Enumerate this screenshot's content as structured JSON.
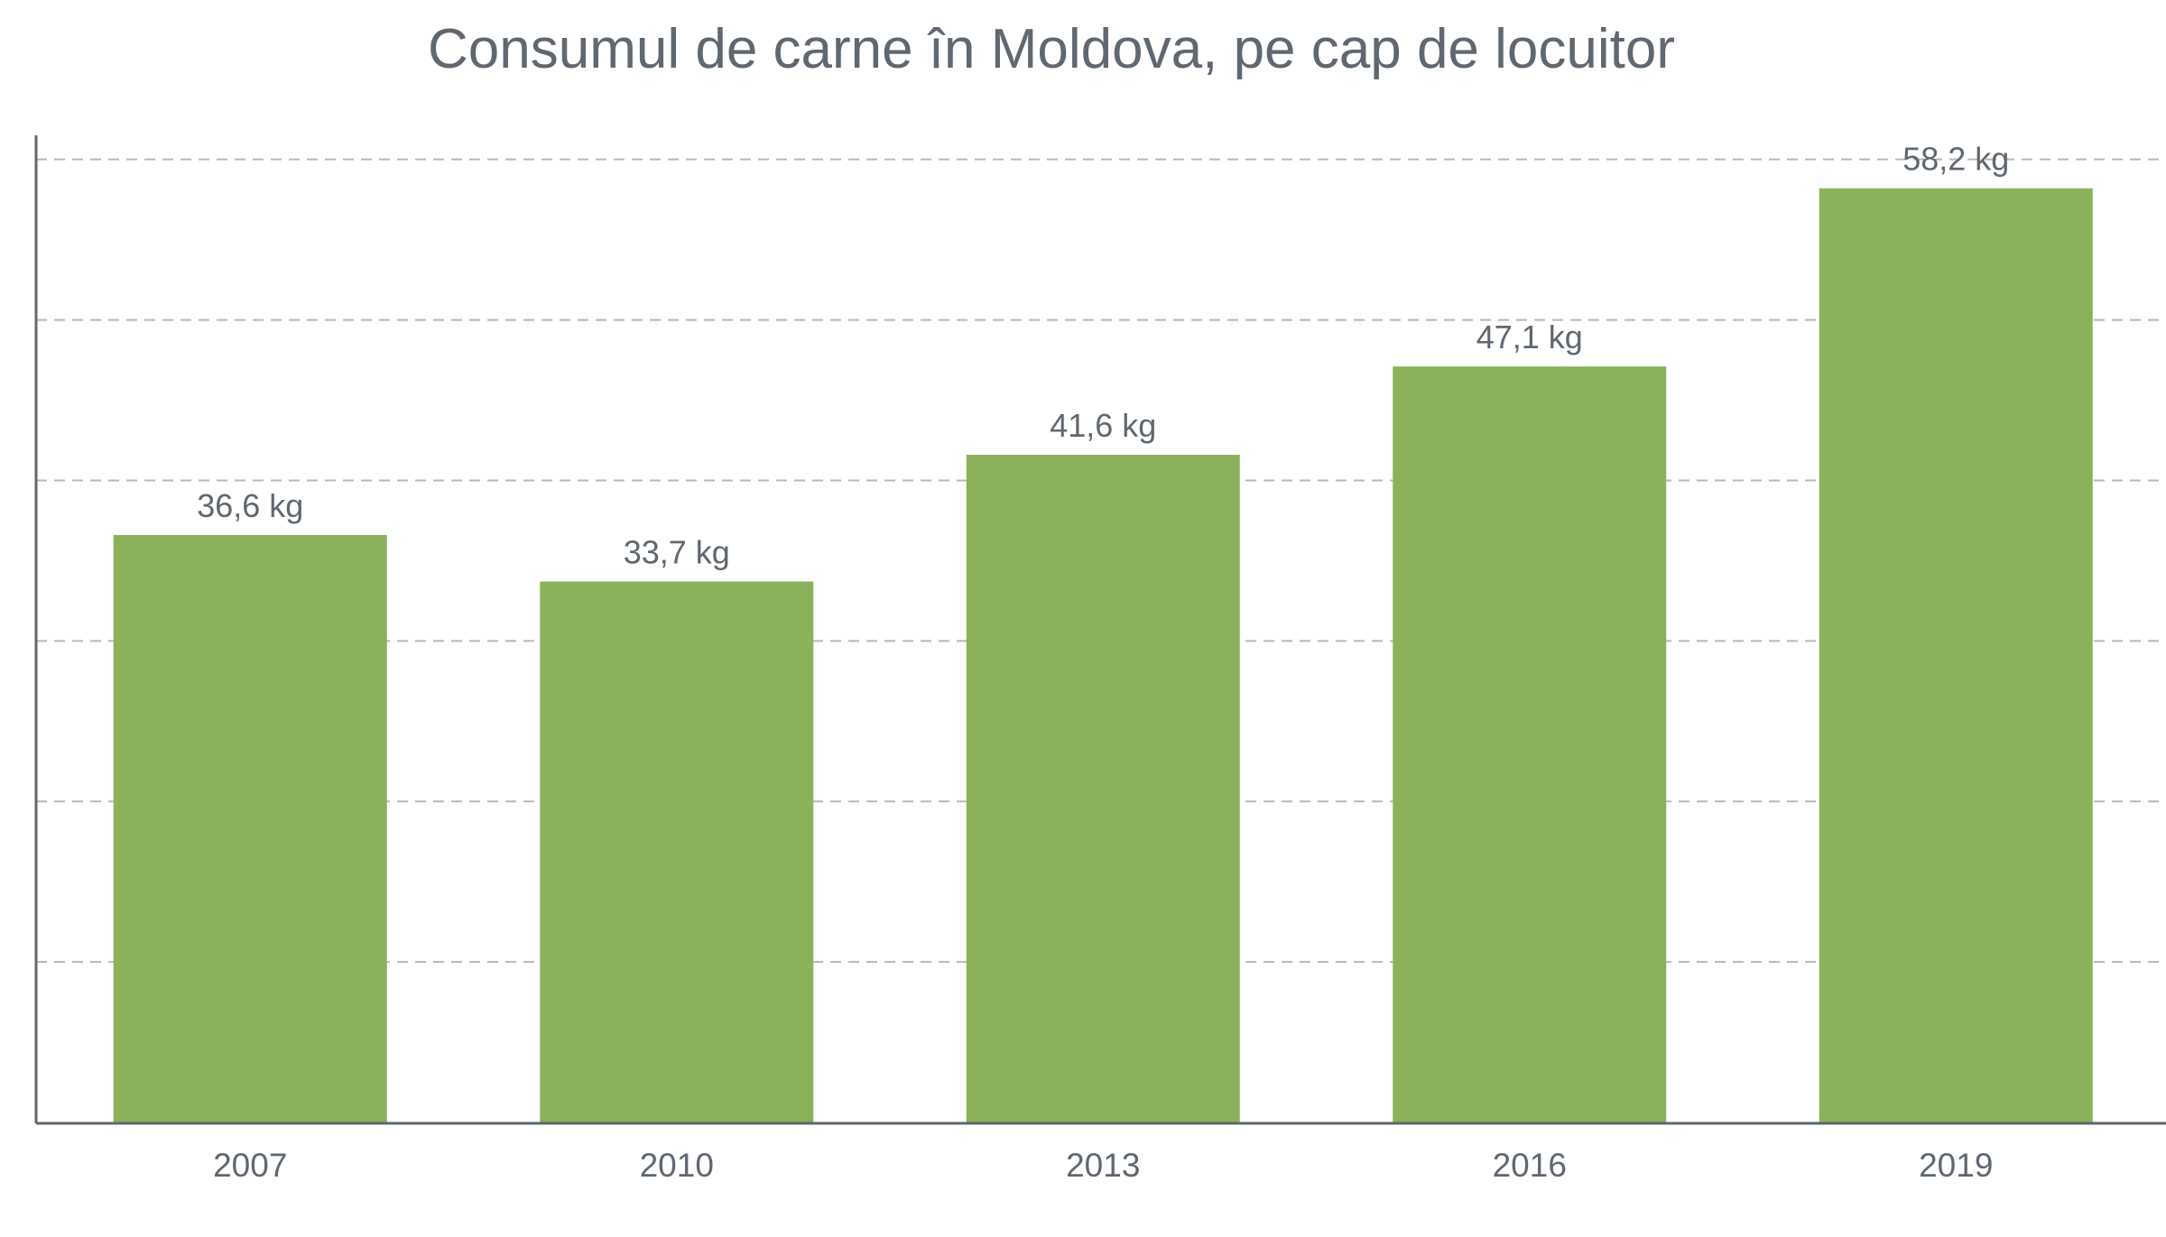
{
  "chart_data": {
    "type": "bar",
    "title": "Consumul de carne în Moldova, pe cap de locuitor",
    "xlabel": "",
    "ylabel": "",
    "categories": [
      "2007",
      "2010",
      "2013",
      "2016",
      "2019"
    ],
    "series": [
      {
        "values": [
          36.6,
          33.7,
          41.6,
          47.1,
          58.2
        ],
        "labels": [
          "36,6 kg",
          "33,7 kg",
          "41,6 kg",
          "47,1 kg",
          "58,2 kg"
        ]
      }
    ],
    "ylim": [
      0,
      61.5
    ],
    "grid": true,
    "grid_style": "dashed",
    "gridline_values": [
      10,
      20,
      30,
      40,
      50,
      60
    ],
    "legend": "none",
    "colors": {
      "bar": "#8bb25b",
      "text": "#5f6770",
      "axis": "#5f6770",
      "grid": "#b8b8b8",
      "background": "#ffffff"
    }
  }
}
